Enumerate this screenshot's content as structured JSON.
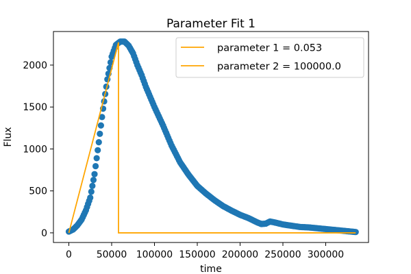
{
  "chart_data": {
    "type": "scatter",
    "title": "Parameter Fit 1",
    "xlabel": "time",
    "ylabel": "Flux",
    "xlim": [
      -18000,
      350000
    ],
    "ylim": [
      -115,
      2400
    ],
    "xticks": [
      0,
      50000,
      100000,
      150000,
      200000,
      250000,
      300000
    ],
    "yticks": [
      0,
      500,
      1000,
      1500,
      2000
    ],
    "grid": false,
    "legend_position": "top-right",
    "colors": {
      "points": "#1f77b4",
      "fit": "#ffa500"
    },
    "series": [
      {
        "type": "scatter",
        "points": [
          [
            0,
            15
          ],
          [
            5000,
            40
          ],
          [
            10000,
            90
          ],
          [
            15000,
            160
          ],
          [
            20000,
            270
          ],
          [
            25000,
            420
          ],
          [
            30000,
            700
          ],
          [
            35000,
            1080
          ],
          [
            40000,
            1480
          ],
          [
            45000,
            1830
          ],
          [
            50000,
            2100
          ],
          [
            55000,
            2240
          ],
          [
            60000,
            2280
          ],
          [
            65000,
            2280
          ],
          [
            70000,
            2230
          ],
          [
            75000,
            2140
          ],
          [
            80000,
            2000
          ],
          [
            85000,
            1880
          ],
          [
            90000,
            1740
          ],
          [
            95000,
            1620
          ],
          [
            100000,
            1500
          ],
          [
            110000,
            1280
          ],
          [
            120000,
            1040
          ],
          [
            130000,
            840
          ],
          [
            140000,
            690
          ],
          [
            150000,
            560
          ],
          [
            160000,
            470
          ],
          [
            170000,
            390
          ],
          [
            180000,
            320
          ],
          [
            190000,
            265
          ],
          [
            200000,
            215
          ],
          [
            210000,
            175
          ],
          [
            220000,
            125
          ],
          [
            225000,
            105
          ],
          [
            230000,
            110
          ],
          [
            235000,
            135
          ],
          [
            240000,
            125
          ],
          [
            250000,
            100
          ],
          [
            260000,
            85
          ],
          [
            270000,
            70
          ],
          [
            280000,
            65
          ],
          [
            290000,
            55
          ],
          [
            300000,
            45
          ],
          [
            310000,
            35
          ],
          [
            320000,
            25
          ],
          [
            330000,
            15
          ],
          [
            335000,
            10
          ]
        ]
      },
      {
        "type": "line",
        "name": "parameter 1 = 0.053",
        "points": [
          [
            0,
            0
          ],
          [
            58000,
            2270
          ],
          [
            58000,
            0
          ],
          [
            335000,
            0
          ]
        ]
      },
      {
        "type": "line",
        "name": "parameter 2 = 100000.0",
        "points": []
      }
    ]
  }
}
